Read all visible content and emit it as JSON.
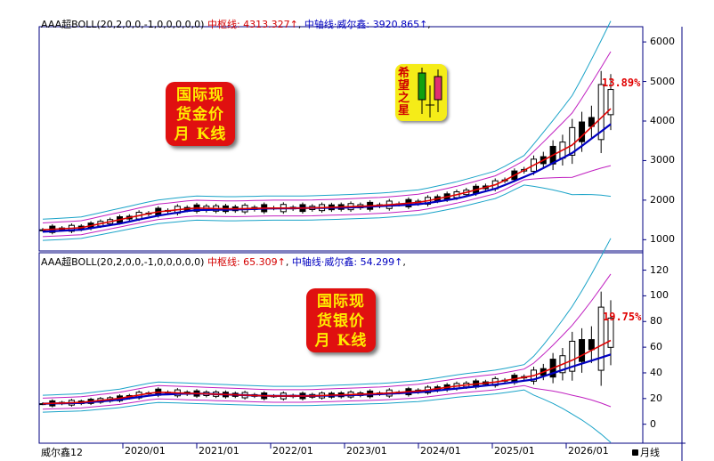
{
  "colors": {
    "boll_band": "#1aa3c8",
    "middle_line": "#e00000",
    "axis_line": "#0000c0",
    "outer_band": "#c020c0",
    "candle_up": "#000000",
    "candle_down": "#000000",
    "axis_color": "#000080",
    "accent_red": "#e00000",
    "badge_bg": "#e01010",
    "badge_text": "#ffeb00"
  },
  "top_panel": {
    "header_prefix": "AAA超BOLL(20,2,0,0,-1,0,0,0,0,0)",
    "header_mid_label": "中枢线: 4313.327",
    "header_axis_label": "中轴线·威尔鑫: 3920.865",
    "arrow": "↑",
    "comma": ",",
    "badge_lines": [
      "国际现",
      "货金价",
      "月 K线"
    ],
    "pct_label": "13.89%",
    "logo_text": "希望之星"
  },
  "bottom_panel": {
    "header_prefix": "AAA超BOLL(20,2,0,0,-1,0,0,0,0,0)",
    "header_mid_label": "中枢线: 65.309",
    "header_axis_label": "中轴线·威尔鑫: 54.299",
    "arrow": "↑",
    "comma": ",",
    "badge_lines": [
      "国际现",
      "货银价",
      "月 K线"
    ],
    "pct_label": "19.75%"
  },
  "footer": {
    "left_label": "威尔鑫12",
    "right_label": "月线"
  },
  "chart_data": [
    {
      "type": "line",
      "title": "国际现货金价月K线",
      "x_ticks": [
        "2020/01",
        "2021/01",
        "2022/01",
        "2023/01",
        "2024/01",
        "2025/01",
        "2026/01"
      ],
      "y_ticks": [
        1000,
        2000,
        3000,
        4000,
        5000,
        6000
      ],
      "ylim": [
        850,
        6250
      ],
      "series": [
        {
          "name": "中枢线",
          "values": [
            1250,
            1300,
            1500,
            1700,
            1800,
            1780,
            1800,
            1800,
            1830,
            1870,
            1950,
            2150,
            2400,
            2900,
            3400,
            4313
          ]
        },
        {
          "name": "中轴线·威尔鑫",
          "values": [
            1200,
            1250,
            1400,
            1600,
            1750,
            1760,
            1790,
            1800,
            1810,
            1850,
            1900,
            2050,
            2300,
            2700,
            3200,
            3921
          ]
        }
      ],
      "last_close_pct": "13.89%"
    },
    {
      "type": "line",
      "title": "国际现货银价月K线",
      "x_ticks": [
        "2020/01",
        "2021/01",
        "2022/01",
        "2023/01",
        "2024/01",
        "2025/01",
        "2026/01"
      ],
      "y_ticks": [
        0,
        20,
        40,
        60,
        80,
        100,
        120
      ],
      "ylim": [
        -12,
        128
      ],
      "series": [
        {
          "name": "中枢线",
          "values": [
            16,
            17,
            20,
            25,
            24,
            23,
            22,
            22,
            23,
            24,
            26,
            30,
            33,
            38,
            50,
            65.309
          ]
        },
        {
          "name": "中轴线·威尔鑫",
          "values": [
            16,
            16.5,
            19,
            23,
            24,
            23,
            22,
            22,
            22.5,
            23.5,
            25,
            28,
            31,
            35,
            45,
            54.299
          ]
        }
      ],
      "last_close_pct": "19.75%"
    }
  ]
}
